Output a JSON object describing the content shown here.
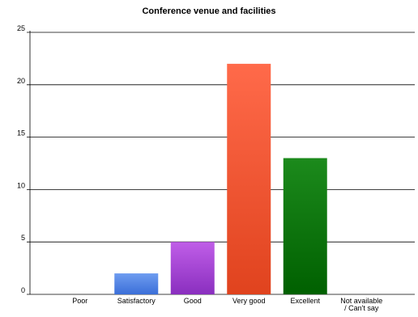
{
  "chart_data": {
    "type": "bar",
    "title": "Conference venue and facilities",
    "xlabel": "",
    "ylabel": "",
    "categories": [
      "Poor",
      "Satisfactory",
      "Good",
      "Very good",
      "Excellent",
      "Not available\n/ Can't say"
    ],
    "values": [
      0,
      2,
      5,
      22,
      13,
      0
    ],
    "ylim": [
      0,
      25
    ],
    "yticks": [
      0,
      5,
      10,
      15,
      20,
      25
    ],
    "grid": true,
    "legend": "none",
    "colors": [
      "#4f86e8",
      "#4f86e8",
      "#a84fd4",
      "#f0563a",
      "#0f7a0f",
      "#888888"
    ],
    "gradients": [
      [
        "#6e9cf0",
        "#3b6fd8"
      ],
      [
        "#6e9cf0",
        "#3b6fd8"
      ],
      [
        "#c05ee8",
        "#8a2fbf"
      ],
      [
        "#ff6a4a",
        "#e0431e"
      ],
      [
        "#1c8a1c",
        "#006000"
      ],
      [
        "#aaaaaa",
        "#777777"
      ]
    ]
  }
}
